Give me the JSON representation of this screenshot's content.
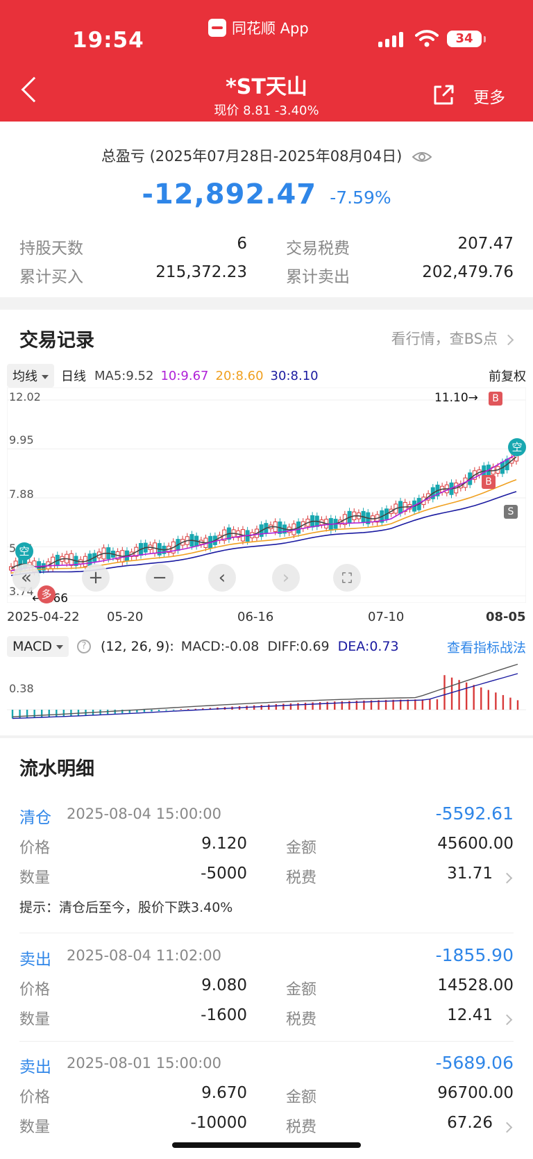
{
  "status_bar": {
    "time": "19:54",
    "app": "同花顺 App",
    "battery": "34"
  },
  "nav": {
    "title": "*ST天山",
    "subtitle": "现价 8.81 -3.40%",
    "more": "更多"
  },
  "summary": {
    "period": "总盈亏 (2025年07月28日-2025年08月04日)",
    "pnl": "-12,892.47",
    "pnl_pct": "-7.59%",
    "hold_days_label": "持股天数",
    "hold_days": "6",
    "tax_label": "交易税费",
    "tax": "207.47",
    "buy_label": "累计买入",
    "buy": "215,372.23",
    "sell_label": "累计卖出",
    "sell": "202,479.76"
  },
  "trade_record": {
    "title": "交易记录",
    "link": "看行情，查BS点",
    "toolbar": {
      "ma_select": "均线",
      "period": "日线",
      "ma5": "MA5:9.52",
      "ma10": "10:9.67",
      "ma20": "20:8.60",
      "ma30": "30:8.10",
      "adjust": "前复权"
    },
    "y_ticks": [
      "12.02",
      "9.95",
      "7.88",
      "5.81",
      "3.74"
    ],
    "x_ticks": [
      "2025-04-22",
      "05-20",
      "06-16",
      "07-10",
      "08-05"
    ],
    "high_label": "11.10",
    "low_label": "4.66",
    "markers": {
      "buy": "B",
      "sell": "S",
      "empty": "空",
      "many": "多"
    },
    "macd": {
      "select": "MACD",
      "params": "(12, 26, 9):",
      "macd": "MACD:-0.08",
      "diff": "DIFF:0.69",
      "dea": "DEA:0.73",
      "link": "查看指标战法",
      "y_tick": "0.38"
    },
    "colors": {
      "up": "#d83a3a",
      "down": "#18a7b0",
      "ma5": "#444444",
      "ma10": "#b020d8",
      "ma20": "#f0a020",
      "ma30": "#1a1aa0"
    }
  },
  "chart_data": {
    "type": "line",
    "title": "",
    "x": [
      "2025-04-22",
      "05-20",
      "06-16",
      "07-10",
      "08-05"
    ],
    "series": [
      {
        "name": "MA5",
        "values": [
          4.9,
          5.6,
          6.5,
          7.2,
          9.52
        ]
      },
      {
        "name": "10",
        "values": [
          4.8,
          5.4,
          6.4,
          7.0,
          9.67
        ]
      },
      {
        "name": "20",
        "values": [
          4.7,
          5.2,
          6.1,
          6.8,
          8.6
        ]
      },
      {
        "name": "30",
        "values": [
          4.6,
          5.0,
          5.9,
          6.6,
          8.1
        ]
      }
    ],
    "ylim": [
      3.74,
      12.02
    ]
  },
  "flow": {
    "title": "流水明细",
    "records": [
      {
        "type": "清仓",
        "time": "2025-08-04 15:00:00",
        "amount": "-5592.61",
        "price_label": "价格",
        "price": "9.120",
        "money_label": "金额",
        "money": "45600.00",
        "qty_label": "数量",
        "qty": "-5000",
        "fee_label": "税费",
        "fee": "31.71",
        "tip": "提示：清仓后至今，股价下跌3.40%"
      },
      {
        "type": "卖出",
        "time": "2025-08-04 11:02:00",
        "amount": "-1855.90",
        "price_label": "价格",
        "price": "9.080",
        "money_label": "金额",
        "money": "14528.00",
        "qty_label": "数量",
        "qty": "-1600",
        "fee_label": "税费",
        "fee": "12.41"
      },
      {
        "type": "卖出",
        "time": "2025-08-01 15:00:00",
        "amount": "-5689.06",
        "price_label": "价格",
        "price": "9.670",
        "money_label": "金额",
        "money": "96700.00",
        "qty_label": "数量",
        "qty": "-10000",
        "fee_label": "税费",
        "fee": "67.26"
      }
    ]
  }
}
